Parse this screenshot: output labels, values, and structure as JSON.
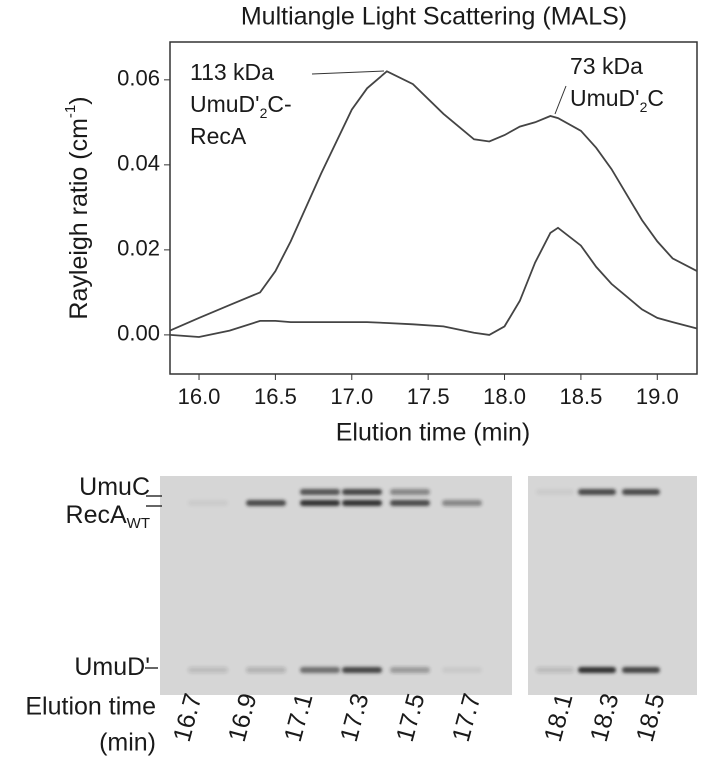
{
  "chart_data": {
    "type": "line",
    "title": "Multiangle Light Scattering (MALS)",
    "x_label": "Elution time (min)",
    "y_label": [
      "Rayleigh ratio (cm",
      "-1",
      ")"
    ],
    "x": [
      15.81,
      16.0,
      16.2,
      16.4,
      16.5,
      16.6,
      16.8,
      17.0,
      17.1,
      17.23,
      17.4,
      17.6,
      17.8,
      17.9,
      18.0,
      18.1,
      18.2,
      18.3,
      18.35,
      18.5,
      18.6,
      18.7,
      18.8,
      18.9,
      19.0,
      19.1,
      19.26
    ],
    "series": [
      {
        "color": "#444444",
        "values": [
          0.001,
          0.004,
          0.007,
          0.01,
          0.015,
          0.022,
          0.038,
          0.053,
          0.058,
          0.062,
          0.059,
          0.052,
          0.046,
          0.0455,
          0.047,
          0.049,
          0.05,
          0.0515,
          0.051,
          0.048,
          0.044,
          0.039,
          0.033,
          0.027,
          0.022,
          0.018,
          0.015
        ]
      },
      {
        "color": "#444444",
        "values": [
          0.0,
          -0.0005,
          0.001,
          0.0033,
          0.0033,
          0.003,
          0.003,
          0.003,
          0.003,
          0.0028,
          0.0025,
          0.002,
          0.0005,
          0.0,
          0.002,
          0.008,
          0.017,
          0.024,
          0.0252,
          0.021,
          0.016,
          0.012,
          0.009,
          0.006,
          0.004,
          0.003,
          0.0015
        ]
      }
    ],
    "annotations": [
      {
        "lines": [
          [
            "113 kDa"
          ],
          [
            "UmuD'",
            "2",
            "C-"
          ],
          [
            "RecA"
          ]
        ]
      },
      {
        "lines": [
          [
            "73 kDa"
          ],
          [
            "UmuD'",
            "2",
            "C"
          ]
        ]
      }
    ],
    "xlim": [
      15.81,
      19.26
    ],
    "xticks": [
      {
        "value": 16,
        "label": "16.0"
      },
      16.5,
      {
        "value": 17,
        "label": "17.0"
      },
      17.5,
      {
        "value": 18,
        "label": "18.0"
      },
      18.5,
      {
        "value": 19,
        "label": "19.0"
      }
    ],
    "ylim": [
      -0.0092,
      0.0689
    ],
    "yticks": [
      {
        "value": 0,
        "label": "0.00"
      },
      0.02,
      0.04,
      0.06
    ]
  },
  "gel": {
    "band_labels": [
      [
        "UmuC"
      ],
      [
        "RecA",
        "WT"
      ],
      [
        "UmuD'"
      ]
    ],
    "axis_label": [
      "Elution time",
      "(min)"
    ],
    "left_lanes": [
      "16.7",
      "16.9",
      "17.1",
      "17.3",
      "17.5",
      "17.7"
    ],
    "right_lanes": [
      "18.1",
      "18.3",
      "18.5"
    ]
  }
}
